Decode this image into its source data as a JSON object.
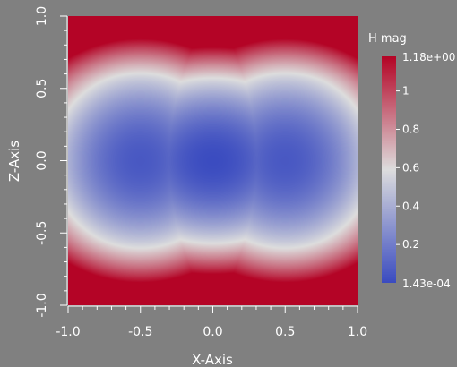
{
  "chart_data": {
    "type": "heatmap",
    "field_label": "H mag",
    "xlabel": "X-Axis",
    "ylabel": "Z-Axis",
    "xlim": [
      -1.0,
      1.0
    ],
    "ylim": [
      -1.0,
      1.0
    ],
    "x_ticks": [
      "-1.0",
      "-0.5",
      "0.0",
      "0.5",
      "1.0"
    ],
    "y_ticks": [
      "-1.0",
      "-0.5",
      "0.0",
      "0.5",
      "1.0"
    ],
    "x_tick_values": [
      -1.0,
      -0.5,
      0.0,
      0.5,
      1.0
    ],
    "y_tick_values": [
      -1.0,
      -0.5,
      0.0,
      0.5,
      1.0
    ],
    "value_range": [
      0.000143,
      1.18
    ],
    "colorbar": {
      "max_label": "1.18e+00",
      "min_label": "1.43e-04",
      "tick_labels": [
        "1",
        "0.8",
        "0.6",
        "0.4",
        "0.2"
      ],
      "tick_values": [
        1.0,
        0.8,
        0.6,
        0.4,
        0.2
      ]
    },
    "colormap": [
      "#3b4cc0",
      "#dddddd",
      "#b40426"
    ],
    "grid": false,
    "minima": [
      {
        "x": -0.5,
        "y": 0.0,
        "value": 0.05
      },
      {
        "x": 0.0,
        "y": 0.0,
        "value": 0.000143
      },
      {
        "x": 0.5,
        "y": 0.0,
        "value": 0.05
      }
    ]
  }
}
